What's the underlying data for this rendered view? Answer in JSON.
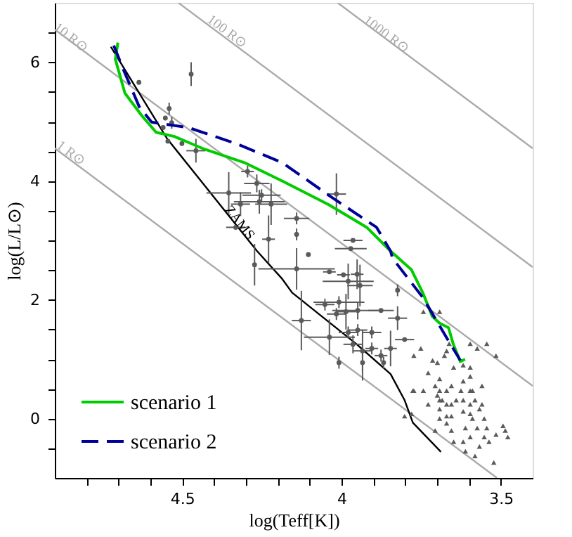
{
  "chart_data": {
    "type": "scatter",
    "xlabel": "log(Teff[K])",
    "ylabel": "log(L/L⊙)",
    "xlim": [
      4.9,
      3.4
    ],
    "ylim": [
      -1,
      7
    ],
    "xticks": [
      {
        "value": 4.8,
        "label": null
      },
      {
        "value": 4.7,
        "label": null
      },
      {
        "value": 4.6,
        "label": null
      },
      4.5,
      {
        "value": 4.4,
        "label": null
      },
      {
        "value": 4.3,
        "label": null
      },
      {
        "value": 4.2,
        "label": null
      },
      {
        "value": 4.1,
        "label": null
      },
      4,
      {
        "value": 3.9,
        "label": null
      },
      {
        "value": 3.8,
        "label": null
      },
      {
        "value": 3.7,
        "label": null
      },
      {
        "value": 3.6,
        "label": null
      },
      3.5
    ],
    "yticks": [
      {
        "value": -0.5,
        "label": null
      },
      0,
      {
        "value": 0.5,
        "label": null
      },
      {
        "value": 1,
        "label": null
      },
      {
        "value": 1.5,
        "label": null
      },
      2,
      {
        "value": 2.5,
        "label": null
      },
      {
        "value": 3,
        "label": null
      },
      {
        "value": 3.5,
        "label": null
      },
      4,
      {
        "value": 4.5,
        "label": null
      },
      {
        "value": 5,
        "label": null
      },
      {
        "value": 5.5,
        "label": null
      },
      6,
      {
        "value": 6.5,
        "label": null
      }
    ],
    "grid": false,
    "legend": "bottom left",
    "annotations": [
      {
        "text": "1 R⊙",
        "x": 4.85,
        "y": 4.47
      },
      {
        "text": "10 R⊙",
        "x": 4.85,
        "y": 6.42
      },
      {
        "text": "100 R⊙",
        "x": 4.36,
        "y": 6.52
      },
      {
        "text": "1000 R⊙",
        "x": 3.86,
        "y": 6.47
      },
      {
        "text": "ZAMS",
        "x": 4.32,
        "y": 3.3
      }
    ],
    "series": [
      {
        "type": "line",
        "color": "#aaaaaa",
        "marker": "none",
        "line_style": "solid",
        "x": [
          4.9,
          3.512
        ],
        "values": [
          4.55,
          -1
        ]
      },
      {
        "type": "line",
        "color": "#aaaaaa",
        "marker": "none",
        "line_style": "solid",
        "x": [
          4.9,
          3.4
        ],
        "values": [
          6.55,
          0.55
        ]
      },
      {
        "type": "line",
        "color": "#aaaaaa",
        "marker": "none",
        "line_style": "solid",
        "x": [
          4.512,
          3.4
        ],
        "values": [
          7,
          2.55
        ]
      },
      {
        "type": "line",
        "color": "#aaaaaa",
        "marker": "none",
        "line_style": "solid",
        "x": [
          4.012,
          3.4
        ],
        "values": [
          7,
          4.55
        ]
      },
      {
        "type": "line",
        "color": "#000000",
        "marker": "none",
        "line_style": "solid",
        "x": [
          4.724,
          4.547,
          4.265,
          4.186,
          4.155,
          3.952,
          3.846,
          3.802,
          3.776,
          3.688
        ],
        "values": [
          6.26,
          4.71,
          2.82,
          2.35,
          2.12,
          1.25,
          0.75,
          0.31,
          -0.07,
          -0.56
        ]
      },
      {
        "color": "#5a5a5a",
        "marker": "circle",
        "x": [
          4.636,
          4.472,
          4.541,
          4.553,
          4.533,
          4.56,
          4.501,
          4.457,
          4.545,
          4.295,
          4.266,
          4.354,
          4.317,
          4.258,
          4.221,
          4.251,
          4.332,
          4.229,
          4.141,
          4.141,
          4.104,
          4.016,
          3.964,
          3.971,
          4.273,
          4.141,
          4.038,
          3.994,
          3.951,
          3.979,
          3.942,
          4.008,
          4.052,
          3.949,
          3.876,
          3.986,
          4.016,
          4.126,
          4.038,
          3.949,
          3.979,
          3.905,
          3.824,
          3.802,
          3.846,
          3.934,
          3.905,
          3.964,
          3.868,
          3.824,
          3.934,
          3.876,
          4.008
        ],
        "values": [
          5.66,
          5.8,
          5.22,
          5.06,
          4.98,
          4.9,
          4.63,
          4.51,
          4.67,
          4.16,
          3.96,
          3.8,
          3.61,
          3.65,
          3.61,
          3.76,
          3.22,
          3.02,
          3.37,
          3.1,
          2.76,
          3.78,
          3.0,
          2.86,
          2.59,
          2.52,
          2.47,
          2.42,
          2.43,
          2.31,
          2.24,
          1.96,
          1.92,
          1.82,
          1.82,
          1.8,
          1.76,
          1.65,
          1.37,
          1.49,
          1.45,
          1.45,
          1.69,
          1.33,
          1.18,
          1.14,
          1.18,
          1.25,
          0.94,
          2.16,
          0.94,
          1.06,
          0.94
        ],
        "xerrors": [
          null,
          null,
          null,
          null,
          null,
          null,
          null,
          0.03,
          null,
          0.02,
          0.04,
          0.07,
          0.03,
          0.08,
          0.05,
          0.06,
          0.03,
          0.02,
          0.04,
          null,
          null,
          0.03,
          0.03,
          0.05,
          null,
          0.12,
          0.02,
          0.02,
          0.02,
          0.08,
          0.04,
          0.08,
          0.03,
          0.08,
          0.04,
          0.03,
          0.03,
          0.03,
          0.08,
          0.03,
          0.03,
          0.03,
          0.03,
          0.03,
          0.02,
          0.03,
          0.02,
          0.03,
          null,
          null,
          null,
          0.02,
          null
        ],
        "errors": [
          null,
          0.2,
          0.1,
          null,
          0.1,
          null,
          null,
          0.2,
          null,
          0.1,
          0.15,
          0.35,
          0.2,
          0.2,
          0.35,
          0.1,
          null,
          0.4,
          0.1,
          0.1,
          null,
          0.35,
          null,
          null,
          0.35,
          0.35,
          null,
          null,
          0.25,
          0.3,
          0.35,
          0.1,
          0.1,
          0.15,
          null,
          0.3,
          0.1,
          0.5,
          0.3,
          0.1,
          0.1,
          0.1,
          0.2,
          null,
          0.3,
          0.35,
          0.1,
          0.15,
          0.1,
          0.1,
          0.3,
          0.1,
          0.1
        ]
      },
      {
        "color": "#5a5a5a",
        "marker": "triangle",
        "x": [
          3.743,
          3.692,
          3.773,
          3.751,
          3.728,
          3.714,
          3.699,
          3.677,
          3.662,
          3.67,
          3.648,
          3.692,
          3.706,
          3.699,
          3.684,
          3.67,
          3.655,
          3.64,
          3.692,
          3.67,
          3.692,
          3.706,
          3.655,
          3.648,
          3.618,
          3.625,
          3.618,
          3.611,
          3.618,
          3.596,
          3.589,
          3.596,
          3.589,
          3.596,
          3.581,
          3.567,
          3.559,
          3.559,
          3.552,
          3.544,
          3.537,
          3.522,
          3.515,
          3.493,
          3.486,
          3.478,
          3.596,
          3.574,
          3.544,
          3.515,
          3.773,
          3.743,
          3.728,
          3.78,
          3.692,
          3.692,
          3.67,
          3.67,
          3.596,
          3.596,
          3.596,
          3.581,
          3.574,
          3.552,
          3.567,
          3.618,
          3.618,
          3.611,
          3.655,
          3.655,
          3.802,
          3.776
        ],
        "values": [
          1.8,
          1.8,
          1.06,
          1.18,
          0.77,
          0.98,
          0.94,
          1.06,
          1.26,
          1.14,
          0.86,
          0.67,
          0.55,
          0.39,
          0.31,
          0.47,
          0.55,
          0.31,
          0.16,
          0.04,
          0.0,
          -0.2,
          -0.2,
          -0.39,
          0.9,
          0.47,
          0.12,
          -0.16,
          -0.39,
          0.71,
          0.47,
          0.24,
          0.0,
          -0.31,
          -0.63,
          -0.47,
          0.55,
          0.24,
          0.0,
          -0.16,
          -0.39,
          -0.74,
          -0.27,
          -0.12,
          -0.2,
          -0.31,
          1.26,
          1.18,
          1.26,
          1.06,
          0.47,
          0.47,
          0.24,
          0.08,
          0.47,
          0.31,
          0.24,
          -0.08,
          0.08,
          0.47,
          0.86,
          0.31,
          -0.16,
          -0.31,
          0.16,
          0.63,
          0.31,
          -0.55,
          0.24,
          0.04,
          0.04,
          0.47
        ]
      },
      {
        "type": "line",
        "name": "scenario 1",
        "color": "#00cc00",
        "marker": "none",
        "line_style": "solid",
        "x": [
          4.702,
          4.71,
          4.68,
          4.627,
          4.582,
          4.525,
          4.437,
          4.305,
          4.186,
          4.04,
          3.921,
          3.846,
          3.781,
          3.745,
          3.715,
          3.693,
          3.664,
          3.649,
          3.627,
          3.612
        ],
        "values": [
          6.33,
          6.05,
          5.48,
          5.1,
          4.82,
          4.75,
          4.55,
          4.31,
          4.0,
          3.6,
          3.22,
          2.82,
          2.51,
          2.12,
          1.72,
          1.61,
          1.53,
          1.25,
          0.96,
          1.0
        ]
      },
      {
        "type": "line",
        "name": "scenario 2",
        "color": "#000099",
        "marker": "none",
        "line_style": "dashed",
        "x": [
          4.715,
          4.685,
          4.635,
          4.596,
          4.481,
          4.331,
          4.186,
          4.04,
          3.89,
          3.846,
          3.84,
          3.745,
          3.671,
          3.627
        ],
        "values": [
          6.28,
          5.88,
          5.25,
          4.99,
          4.9,
          4.63,
          4.31,
          3.76,
          3.22,
          2.82,
          2.7,
          2.04,
          1.37,
          0.98
        ]
      }
    ]
  }
}
